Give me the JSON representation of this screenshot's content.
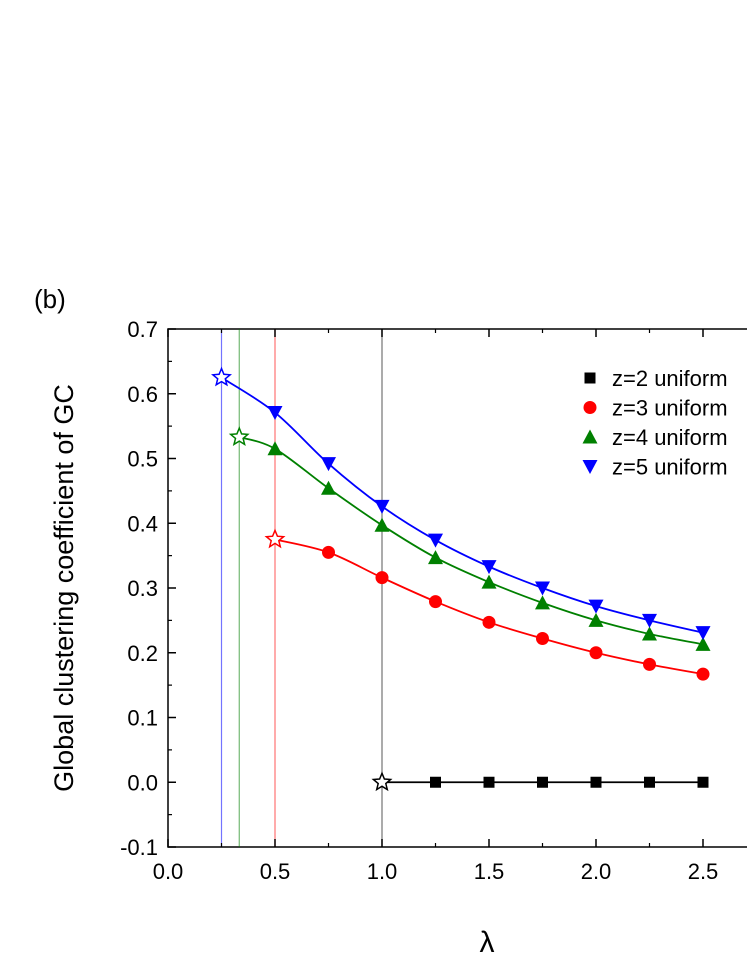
{
  "chart_data": {
    "type": "line",
    "panel_label": "(b)",
    "x_label": "λ",
    "y_label": "Global clustering coefficient of GC",
    "xlim": [
      0,
      3.0
    ],
    "ylim": [
      -0.1,
      0.7
    ],
    "xticks": [
      {
        "value": 0,
        "label": "0.0"
      },
      0.5,
      {
        "value": 1,
        "label": "1.0"
      },
      1.5,
      {
        "value": 2,
        "label": "2.0"
      },
      2.5
    ],
    "yticks": [
      -0.1,
      {
        "value": 0,
        "label": "0.0"
      },
      0.1,
      0.2,
      0.3,
      0.4,
      0.5,
      0.6,
      0.7
    ],
    "series": [
      {
        "name": "z=2 uniform",
        "color": "#000000",
        "marker": "square",
        "threshold_x": 1.0,
        "threshold_y": 0,
        "x": [
          1.25,
          1.5,
          1.75,
          2.0,
          2.25,
          2.5
        ],
        "values": [
          0,
          0,
          0,
          0,
          0,
          0
        ]
      },
      {
        "name": "z=3 uniform",
        "color": "#ff0000",
        "marker": "circle",
        "threshold_x": 0.5,
        "threshold_y": 0.375,
        "x": [
          0.75,
          1.0,
          1.25,
          1.5,
          1.75,
          2.0,
          2.25,
          2.5
        ],
        "values": [
          0.355,
          0.316,
          0.279,
          0.247,
          0.222,
          0.2,
          0.182,
          0.167
        ]
      },
      {
        "name": "z=4 uniform",
        "color": "#008000",
        "marker": "triangle-up",
        "threshold_x": 0.333,
        "threshold_y": 0.533,
        "x": [
          0.5,
          0.75,
          1.0,
          1.25,
          1.5,
          1.75,
          2.0,
          2.25,
          2.5
        ],
        "values": [
          0.515,
          0.454,
          0.397,
          0.347,
          0.309,
          0.277,
          0.25,
          0.229,
          0.213
        ]
      },
      {
        "name": "z=5 uniform",
        "color": "#0000ff",
        "marker": "triangle-down",
        "threshold_x": 0.25,
        "threshold_y": 0.625,
        "x": [
          0.5,
          0.75,
          1.0,
          1.25,
          1.5,
          1.75,
          2.0,
          2.25,
          2.5
        ],
        "values": [
          0.571,
          0.492,
          0.426,
          0.374,
          0.333,
          0.3,
          0.272,
          0.25,
          0.231
        ]
      }
    ]
  }
}
